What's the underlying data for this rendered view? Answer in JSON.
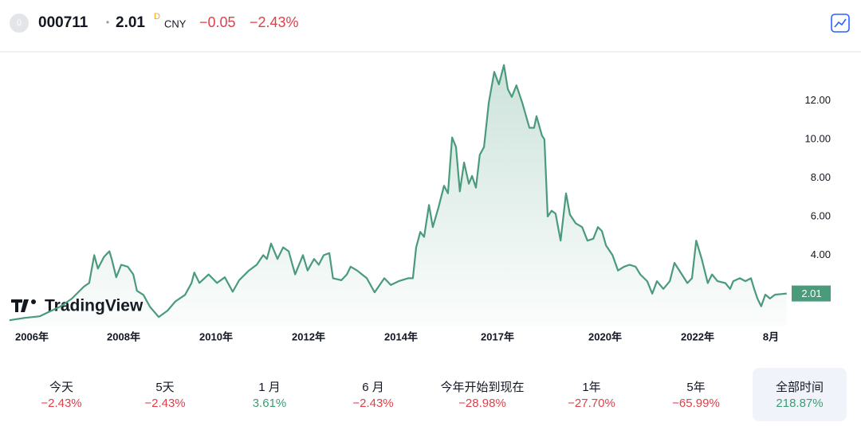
{
  "header": {
    "symbol_badge": "0",
    "symbol": "000711",
    "separator": "•",
    "price": "2.01",
    "price_flag": "D",
    "currency": "CNY",
    "change": "−0.05",
    "change_pct": "−2.43%"
  },
  "chart_data": {
    "type": "area",
    "watermark": "TradingView",
    "color": "#4a9a7c",
    "x": [
      2005.51,
      2005.83,
      2006.17,
      2006.35,
      2006.61,
      2006.87,
      2007.13,
      2007.25,
      2007.36,
      2007.44,
      2007.57,
      2007.69,
      2007.74,
      2007.84,
      2007.95,
      2008.09,
      2008.21,
      2008.29,
      2008.43,
      2008.57,
      2008.76,
      2008.95,
      2009.12,
      2009.33,
      2009.47,
      2009.53,
      2009.64,
      2009.84,
      2010.02,
      2010.19,
      2010.36,
      2010.5,
      2010.71,
      2010.88,
      2011.02,
      2011.1,
      2011.19,
      2011.33,
      2011.45,
      2011.57,
      2011.71,
      2011.88,
      2011.98,
      2012.12,
      2012.22,
      2012.33,
      2012.45,
      2012.53,
      2012.71,
      2012.83,
      2012.91,
      2013.05,
      2013.26,
      2013.43,
      2013.64,
      2013.78,
      2013.95,
      2014.22,
      2014.37,
      2014.47,
      2014.6,
      2014.72,
      2014.87,
      2014.99,
      2015.17,
      2015.34,
      2015.46,
      2015.59,
      2015.71,
      2015.83,
      2015.96,
      2016.11,
      2016.21,
      2016.33,
      2016.45,
      2016.58,
      2016.73,
      2016.9,
      2017.04,
      2017.18,
      2017.29,
      2017.4,
      2017.53,
      2017.69,
      2017.89,
      2018.02,
      2018.09,
      2018.24,
      2018.31,
      2018.4,
      2018.51,
      2018.62,
      2018.76,
      2018.91,
      2019.02,
      2019.18,
      2019.36,
      2019.51,
      2019.67,
      2019.8,
      2019.91,
      2020.02,
      2020.16,
      2020.28,
      2020.41,
      2020.53,
      2020.66,
      2020.76,
      2020.91,
      2021.02,
      2021.12,
      2021.26,
      2021.4,
      2021.5,
      2021.66,
      2021.78,
      2021.88,
      2021.97,
      2022.09,
      2022.22,
      2022.31,
      2022.43,
      2022.6,
      2022.7,
      2022.77,
      2022.91,
      2023.03,
      2023.15,
      2023.22,
      2023.29,
      2023.37,
      2023.46,
      2023.56,
      2023.67,
      2023.8,
      2023.92
    ],
    "values": [
      0.62,
      0.74,
      0.83,
      1.03,
      1.32,
      1.74,
      2.36,
      2.56,
      4.0,
      3.3,
      3.9,
      4.2,
      3.8,
      2.85,
      3.5,
      3.4,
      3.0,
      2.15,
      1.94,
      1.32,
      0.79,
      1.12,
      1.6,
      1.94,
      2.56,
      3.1,
      2.56,
      3.0,
      2.56,
      2.85,
      2.1,
      2.7,
      3.2,
      3.5,
      4.0,
      3.8,
      4.6,
      3.8,
      4.4,
      4.2,
      3.0,
      4.0,
      3.2,
      3.8,
      3.5,
      4.0,
      4.1,
      2.8,
      2.7,
      3.0,
      3.4,
      3.2,
      2.8,
      2.07,
      2.8,
      2.45,
      2.65,
      2.8,
      2.8,
      4.4,
      5.2,
      4.95,
      6.6,
      5.45,
      6.5,
      7.6,
      7.2,
      10.1,
      9.6,
      7.3,
      8.8,
      7.7,
      8.1,
      7.5,
      9.2,
      9.6,
      11.9,
      13.5,
      12.85,
      13.85,
      12.6,
      12.2,
      12.8,
      11.9,
      10.6,
      10.6,
      11.2,
      10.2,
      10.0,
      6.0,
      6.3,
      6.15,
      4.75,
      7.2,
      6.1,
      5.65,
      5.45,
      4.75,
      4.85,
      5.45,
      5.25,
      4.5,
      4.0,
      3.2,
      3.4,
      3.5,
      3.4,
      3.0,
      2.65,
      2.0,
      2.65,
      2.25,
      2.65,
      3.6,
      3.0,
      2.55,
      2.8,
      4.75,
      3.8,
      2.55,
      3.0,
      2.65,
      2.55,
      2.25,
      2.65,
      2.8,
      2.65,
      2.8,
      2.25,
      1.75,
      1.35,
      1.95,
      1.75,
      1.95,
      1.98,
      2.01
    ],
    "xlim": [
      2005.51,
      2023.92
    ],
    "xticks": [
      {
        "value": 2006,
        "label": "2006年"
      },
      {
        "value": 2008,
        "label": "2008年"
      },
      {
        "value": 2010,
        "label": "2010年"
      },
      {
        "value": 2012,
        "label": "2012年"
      },
      {
        "value": 2014,
        "label": "2014年"
      },
      {
        "value": 2017,
        "label": "2017年"
      },
      {
        "value": 2020,
        "label": "2020年"
      },
      {
        "value": 2022,
        "label": "2022年"
      },
      {
        "value": 2023.58,
        "label": "8月"
      }
    ],
    "ylim": [
      0.3,
      14.5
    ],
    "yticks": [
      {
        "value": 4,
        "label": "4.00"
      },
      {
        "value": 6,
        "label": "6.00"
      },
      {
        "value": 8,
        "label": "8.00"
      },
      {
        "value": 10,
        "label": "10.00"
      },
      {
        "value": 12,
        "label": "12.00"
      }
    ],
    "price_label": {
      "value": 2.01,
      "label": "2.01"
    }
  },
  "periods": [
    {
      "label": "今天",
      "change": "−2.43%",
      "color": "#e0404a"
    },
    {
      "label": "5天",
      "change": "−2.43%",
      "color": "#e0404a"
    },
    {
      "label": "1 月",
      "change": "3.61%",
      "color": "#3f9b72"
    },
    {
      "label": "6 月",
      "change": "−2.43%",
      "color": "#e0404a"
    },
    {
      "label": "今年开始到现在",
      "change": "−28.98%",
      "color": "#e0404a"
    },
    {
      "label": "1年",
      "change": "−27.70%",
      "color": "#e0404a"
    },
    {
      "label": "5年",
      "change": "−65.99%",
      "color": "#e0404a"
    },
    {
      "label": "全部时间",
      "change": "218.87%",
      "color": "#3f9b72",
      "selected": true
    }
  ]
}
